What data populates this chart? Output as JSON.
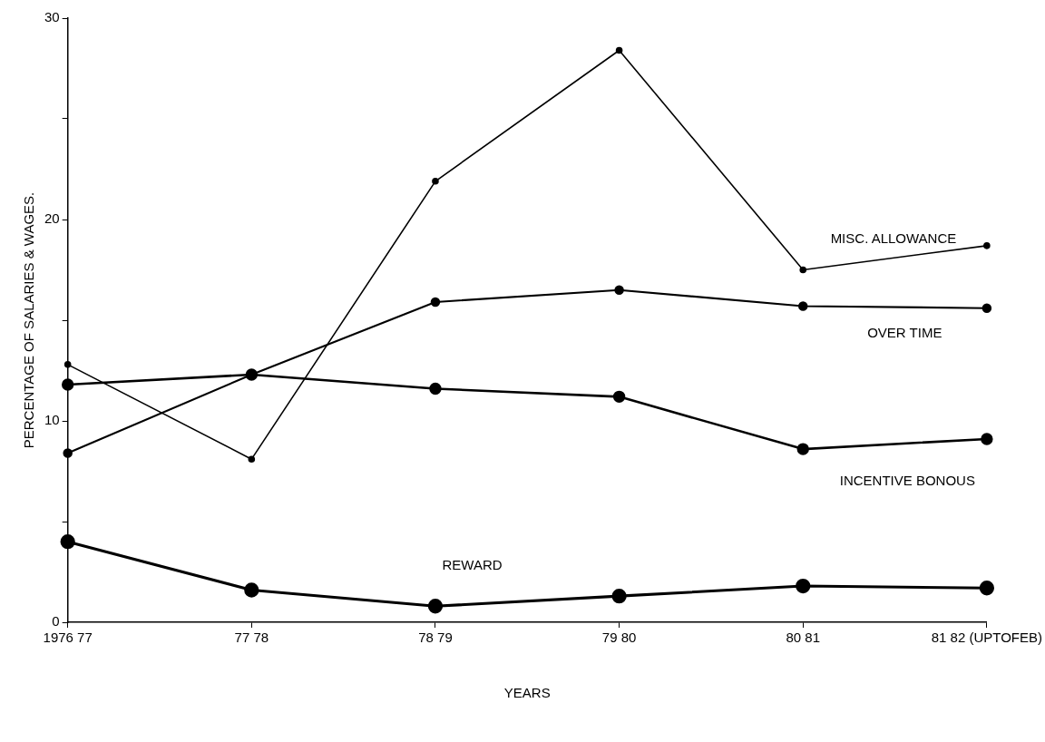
{
  "chart_data": {
    "type": "line",
    "xlabel": "YEARS",
    "ylabel": "PERCENTAGE OF SALARIES & WAGES.",
    "categories": [
      "1976 77",
      "77 78",
      "78 79",
      "79 80",
      "80 81",
      "81 82 (UPTOFEB)"
    ],
    "series": [
      {
        "name": "MISC. ALLOWANCE",
        "color": "#000000",
        "values": [
          12.8,
          8.1,
          21.9,
          28.4,
          17.5,
          18.7
        ]
      },
      {
        "name": "OVER TIME",
        "color": "#000000",
        "values": [
          8.4,
          12.3,
          15.9,
          16.5,
          15.7,
          15.6
        ]
      },
      {
        "name": "INCENTIVE BONOUS",
        "color": "#000000",
        "values": [
          11.8,
          12.3,
          11.6,
          11.2,
          8.6,
          9.1
        ]
      },
      {
        "name": "REWARD",
        "color": "#000000",
        "values": [
          4.0,
          1.6,
          0.8,
          1.3,
          1.8,
          1.7
        ]
      }
    ],
    "ylim": [
      0,
      30
    ],
    "yticks": [
      0,
      {
        "value": 5,
        "label": null
      },
      10,
      {
        "value": 15,
        "label": null
      },
      20,
      {
        "value": 25,
        "label": null
      },
      30
    ],
    "grid": false,
    "legend": false,
    "marker": "circle",
    "line_style": "solid"
  }
}
